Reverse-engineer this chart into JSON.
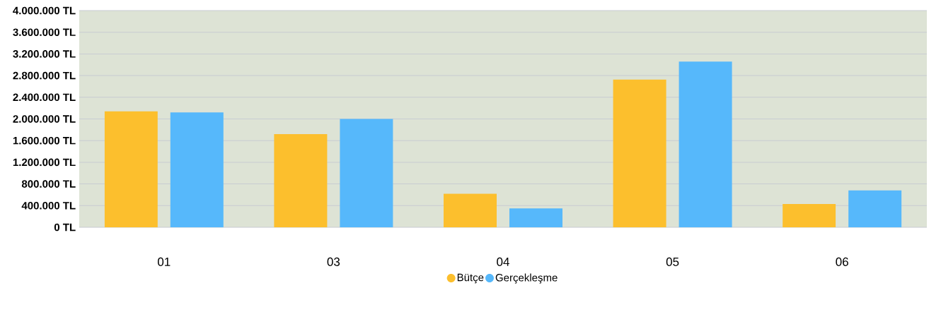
{
  "chart_data": {
    "type": "bar",
    "categories": [
      "01",
      "03",
      "04",
      "05",
      "06"
    ],
    "series": [
      {
        "name": "Bütçe",
        "color": "#fcbf2d",
        "values": [
          2140000,
          1720000,
          620000,
          2730000,
          430000
        ]
      },
      {
        "name": "Gerçekleşme",
        "color": "#56b8fb",
        "values": [
          2120000,
          2000000,
          350000,
          3060000,
          680000
        ]
      }
    ],
    "ylim": [
      0,
      4000000
    ],
    "yticks": [
      {
        "value": 0,
        "label": "0 TL"
      },
      {
        "value": 400000,
        "label": "400.000 TL"
      },
      {
        "value": 800000,
        "label": "800.000 TL"
      },
      {
        "value": 1200000,
        "label": "1.200.000 TL"
      },
      {
        "value": 1600000,
        "label": "1.600.000 TL"
      },
      {
        "value": 2000000,
        "label": "2.000.000 TL"
      },
      {
        "value": 2400000,
        "label": "2.400.000 TL"
      },
      {
        "value": 2800000,
        "label": "2.800.000 TL"
      },
      {
        "value": 3200000,
        "label": "3.200.000 TL"
      },
      {
        "value": 3600000,
        "label": "3.600.000 TL"
      },
      {
        "value": 4000000,
        "label": "4.000.000 TL"
      }
    ],
    "grid": "y",
    "legend": "bottom"
  }
}
